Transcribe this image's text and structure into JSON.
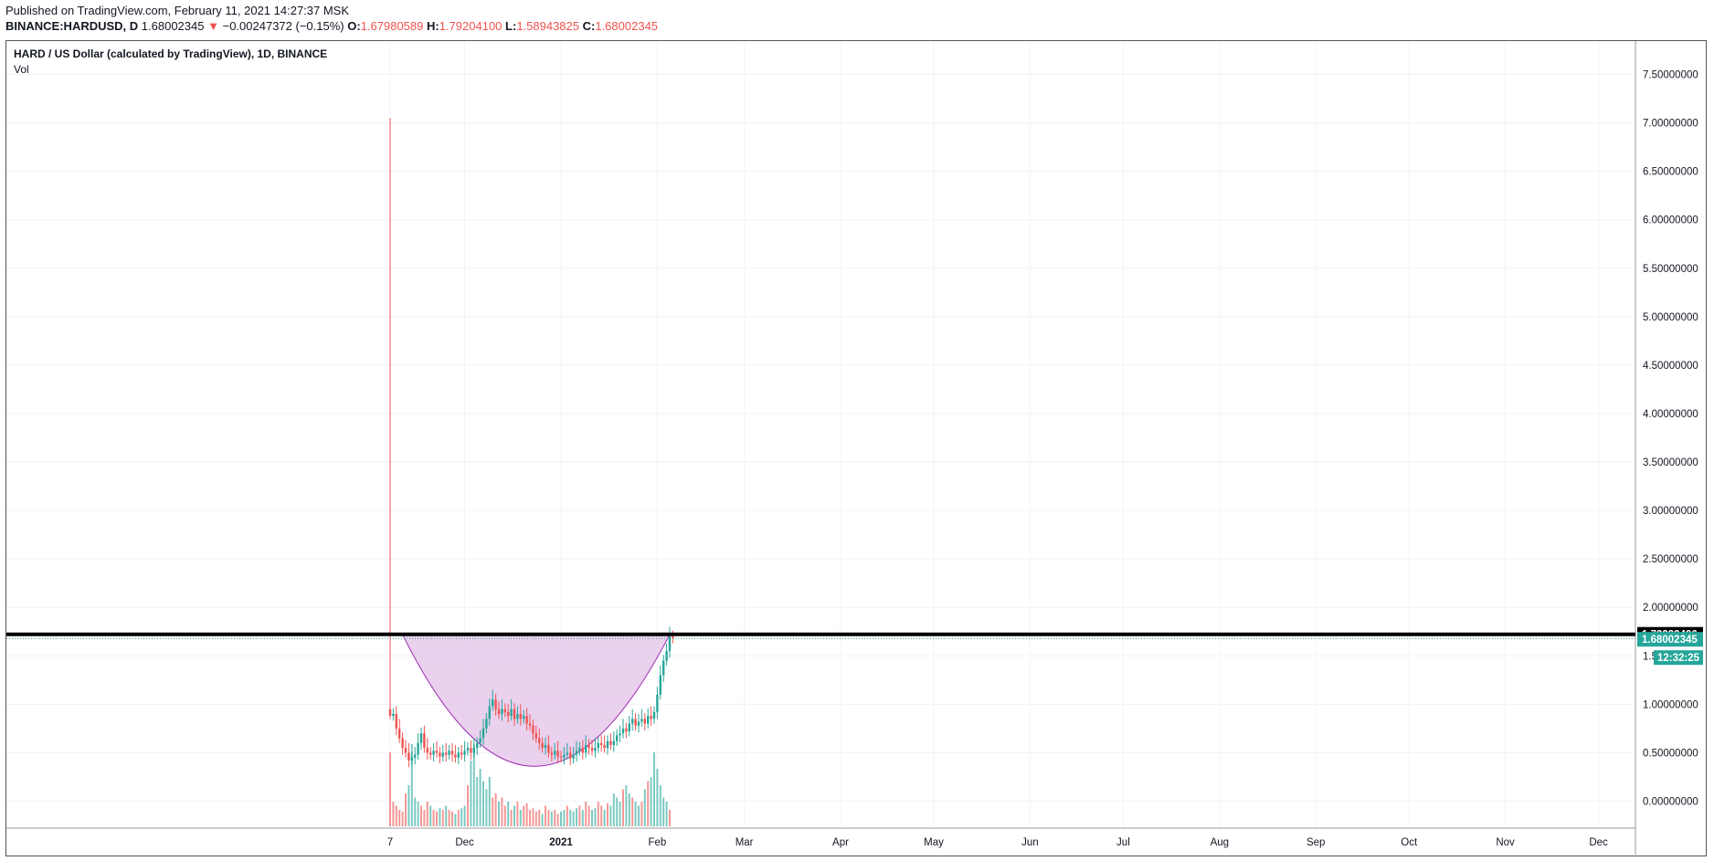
{
  "header": {
    "published": "Published on TradingView.com, February 11, 2021 14:27:37 MSK",
    "symbol": "BINANCE:HARDUSD, D",
    "last": "1.68002345",
    "arrow": "▼",
    "change": "−0.00247372 (−0.15%)",
    "o_label": "O:",
    "o_value": "1.67980589",
    "h_label": "H:",
    "h_value": "1.79204100",
    "l_label": "L:",
    "l_value": "1.58943825",
    "c_label": "C:",
    "c_value": "1.68002345"
  },
  "legend": {
    "title": "HARD / US Dollar (calculated by TradingView), 1D, BINANCE",
    "volume": "Vol"
  },
  "colors": {
    "up": "#26a69a",
    "down": "#ef5350",
    "shape_fill": "#e1bee7",
    "shape_stroke": "#9c27b0",
    "resistance": "#000000",
    "price_tag": "#26a69a"
  },
  "chart_data": {
    "type": "candlestick",
    "title": "HARD / US Dollar (calculated by TradingView), 1D, BINANCE",
    "ylim": [
      -0.3,
      7.9
    ],
    "y_ticks": [
      "7.50000000",
      "7.00000000",
      "6.50000000",
      "6.00000000",
      "5.50000000",
      "5.00000000",
      "4.50000000",
      "4.00000000",
      "3.50000000",
      "3.00000000",
      "2.50000000",
      "2.00000000",
      "1.50000000",
      "1.00000000",
      "0.50000000",
      "0.00000000"
    ],
    "y_tick_values": [
      7.5,
      7.0,
      6.5,
      6.0,
      5.5,
      5.0,
      4.5,
      4.0,
      3.5,
      3.0,
      2.5,
      2.0,
      1.5,
      1.0,
      0.5,
      0.0
    ],
    "x_ticks": [
      {
        "label": "7",
        "day": 0
      },
      {
        "label": "Dec",
        "day": 24
      },
      {
        "label": "2021",
        "day": 55
      },
      {
        "label": "Feb",
        "day": 86
      },
      {
        "label": "Mar",
        "day": 114
      },
      {
        "label": "Apr",
        "day": 145
      },
      {
        "label": "May",
        "day": 175
      },
      {
        "label": "Jun",
        "day": 206
      },
      {
        "label": "Jul",
        "day": 236
      },
      {
        "label": "Aug",
        "day": 267
      },
      {
        "label": "Sep",
        "day": 298
      },
      {
        "label": "Oct",
        "day": 328
      },
      {
        "label": "Nov",
        "day": 359
      },
      {
        "label": "Dec",
        "day": 389
      }
    ],
    "spike": {
      "day": 0,
      "open": 0.95,
      "high": 7.05,
      "low": 0.85,
      "close": 0.88
    },
    "close_series": [
      0.9,
      0.75,
      0.65,
      0.55,
      0.5,
      0.42,
      0.45,
      0.48,
      0.6,
      0.7,
      0.55,
      0.5,
      0.48,
      0.52,
      0.5,
      0.46,
      0.5,
      0.48,
      0.52,
      0.48,
      0.45,
      0.5,
      0.48,
      0.52,
      0.55,
      0.5,
      0.55,
      0.6,
      0.65,
      0.75,
      0.85,
      0.98,
      1.05,
      0.95,
      0.9,
      0.95,
      0.92,
      0.88,
      0.95,
      0.85,
      0.9,
      0.85,
      0.88,
      0.8,
      0.78,
      0.7,
      0.65,
      0.6,
      0.55,
      0.58,
      0.5,
      0.48,
      0.52,
      0.46,
      0.45,
      0.48,
      0.5,
      0.44,
      0.48,
      0.52,
      0.55,
      0.5,
      0.58,
      0.55,
      0.52,
      0.55,
      0.6,
      0.58,
      0.55,
      0.62,
      0.58,
      0.62,
      0.68,
      0.7,
      0.75,
      0.72,
      0.8,
      0.85,
      0.78,
      0.82,
      0.85,
      0.8,
      0.88,
      0.85,
      0.92,
      1.1,
      1.3,
      1.45,
      1.55,
      1.7,
      1.68
    ],
    "volume_series": [
      0.9,
      0.3,
      0.25,
      0.2,
      0.18,
      0.4,
      0.5,
      1.0,
      0.35,
      0.3,
      0.25,
      0.2,
      0.3,
      0.25,
      0.2,
      0.18,
      0.22,
      0.2,
      0.25,
      0.2,
      0.18,
      0.15,
      0.2,
      0.22,
      0.25,
      0.5,
      0.8,
      1.0,
      0.6,
      0.7,
      0.55,
      0.45,
      0.6,
      0.35,
      0.4,
      0.3,
      0.35,
      0.25,
      0.3,
      0.2,
      0.25,
      0.3,
      0.2,
      0.25,
      0.28,
      0.2,
      0.22,
      0.18,
      0.2,
      0.15,
      0.25,
      0.2,
      0.18,
      0.2,
      0.15,
      0.18,
      0.2,
      0.25,
      0.2,
      0.18,
      0.22,
      0.25,
      0.2,
      0.3,
      0.25,
      0.2,
      0.22,
      0.3,
      0.25,
      0.2,
      0.28,
      0.25,
      0.4,
      0.35,
      0.3,
      0.45,
      0.5,
      0.4,
      0.35,
      0.3,
      0.25,
      0.3,
      0.45,
      0.55,
      0.6,
      0.9,
      0.7,
      0.5,
      0.35,
      0.3,
      0.2
    ],
    "resistance_level": 1.72223496,
    "resistance_label": "1.72223496",
    "last_price": 1.68002345,
    "last_price_label": "1.68002345",
    "countdown_label": "12:32:25",
    "cup": {
      "start_day": 4,
      "end_day": 90,
      "bottom_day": 46,
      "bottom_value": 0.36,
      "rim_value": 1.72
    }
  }
}
